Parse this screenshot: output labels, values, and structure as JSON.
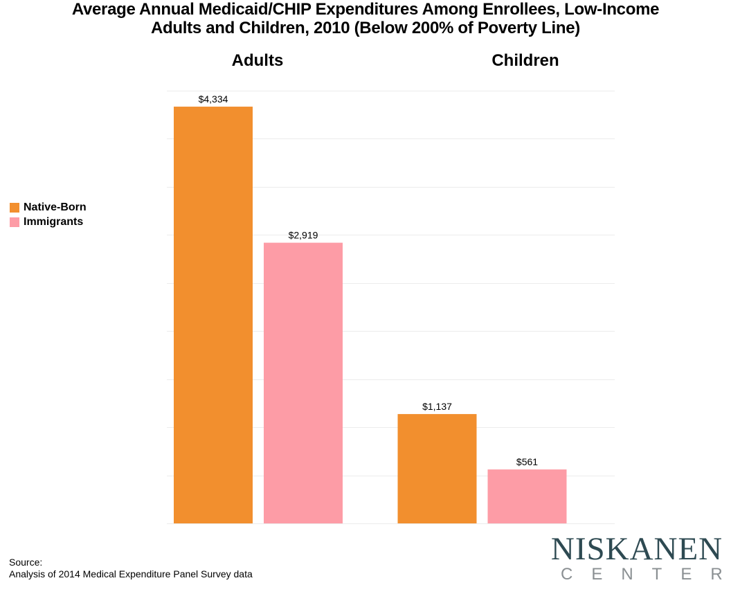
{
  "chart_data": {
    "type": "bar",
    "title": "Average Annual Medicaid/CHIP Expenditures Among Enrollees, Low-Income Adults and Children, 2010 (Below 200% of Poverty Line)",
    "title_lines": [
      "Average Annual Medicaid/CHIP Expenditures Among Enrollees, Low-Income",
      "Adults and Children, 2010 (Below 200% of Poverty Line)"
    ],
    "categories": [
      "Adults",
      "Children"
    ],
    "series": [
      {
        "name": "Native-Born",
        "color": "#f28f2e",
        "values": [
          4334,
          1137
        ],
        "labels": [
          "$4,334",
          "$1,137"
        ]
      },
      {
        "name": "Immigrants",
        "color": "#fd9ca6",
        "values": [
          2919,
          561
        ],
        "labels": [
          "$2,919",
          "$561"
        ]
      }
    ],
    "xlabel": "",
    "ylabel": "",
    "ylim": [
      0,
      4500
    ],
    "gridline_step": 500,
    "grid": true,
    "y_tick_labels_shown": false,
    "legend_position": "left"
  },
  "legend": {
    "items": [
      {
        "label": "Native-Born",
        "color": "#f28f2e"
      },
      {
        "label": "Immigrants",
        "color": "#fd9ca6"
      }
    ]
  },
  "source": {
    "label": "Source:",
    "text": "Analysis of 2014 Medical Expenditure Panel Survey data"
  },
  "logo": {
    "main": "NISKANEN",
    "sub": "CENTER"
  }
}
